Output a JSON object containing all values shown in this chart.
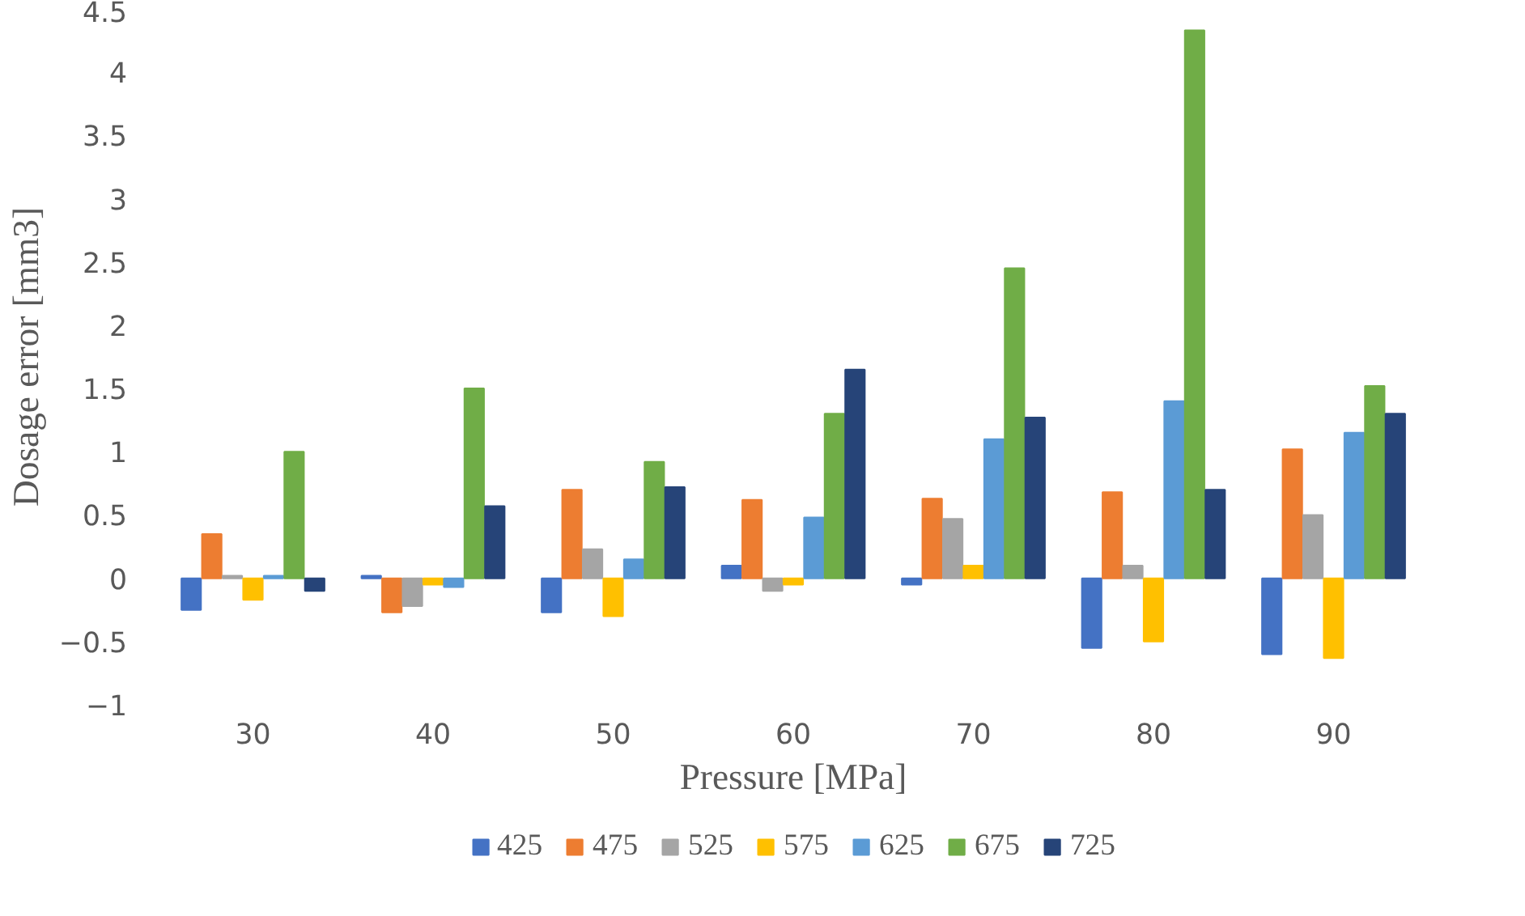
{
  "chart_data": {
    "type": "bar",
    "xlabel": "Pressure [MPa]",
    "ylabel": "Dosage error [mm3]",
    "categories": [
      "30",
      "40",
      "50",
      "60",
      "70",
      "80",
      "90"
    ],
    "series": [
      {
        "name": "425",
        "color": "#4472c4",
        "values": [
          -0.25,
          0.02,
          -0.27,
          0.1,
          -0.05,
          -0.55,
          -0.6
        ]
      },
      {
        "name": "475",
        "color": "#ed7d31",
        "values": [
          0.35,
          -0.27,
          0.7,
          0.62,
          0.63,
          0.68,
          1.02
        ]
      },
      {
        "name": "525",
        "color": "#a5a5a5",
        "values": [
          0.02,
          -0.22,
          0.23,
          -0.1,
          0.47,
          0.1,
          0.5
        ]
      },
      {
        "name": "575",
        "color": "#ffc000",
        "values": [
          -0.17,
          -0.05,
          -0.3,
          -0.05,
          0.1,
          -0.5,
          -0.63
        ]
      },
      {
        "name": "625",
        "color": "#5b9bd5",
        "values": [
          0.02,
          -0.07,
          0.15,
          0.48,
          1.1,
          1.4,
          1.15
        ]
      },
      {
        "name": "675",
        "color": "#70ad47",
        "values": [
          1.0,
          1.5,
          0.92,
          1.3,
          2.45,
          4.33,
          1.52
        ]
      },
      {
        "name": "725",
        "color": "#264478",
        "values": [
          -0.1,
          0.57,
          0.72,
          1.65,
          1.27,
          0.7,
          1.3
        ]
      }
    ],
    "ylim": [
      -1,
      4.5
    ],
    "yticks": [
      -1,
      -0.5,
      0,
      0.5,
      1,
      1.5,
      2,
      2.5,
      3,
      3.5,
      4,
      4.5
    ],
    "grid": false,
    "legend": "bottom"
  }
}
